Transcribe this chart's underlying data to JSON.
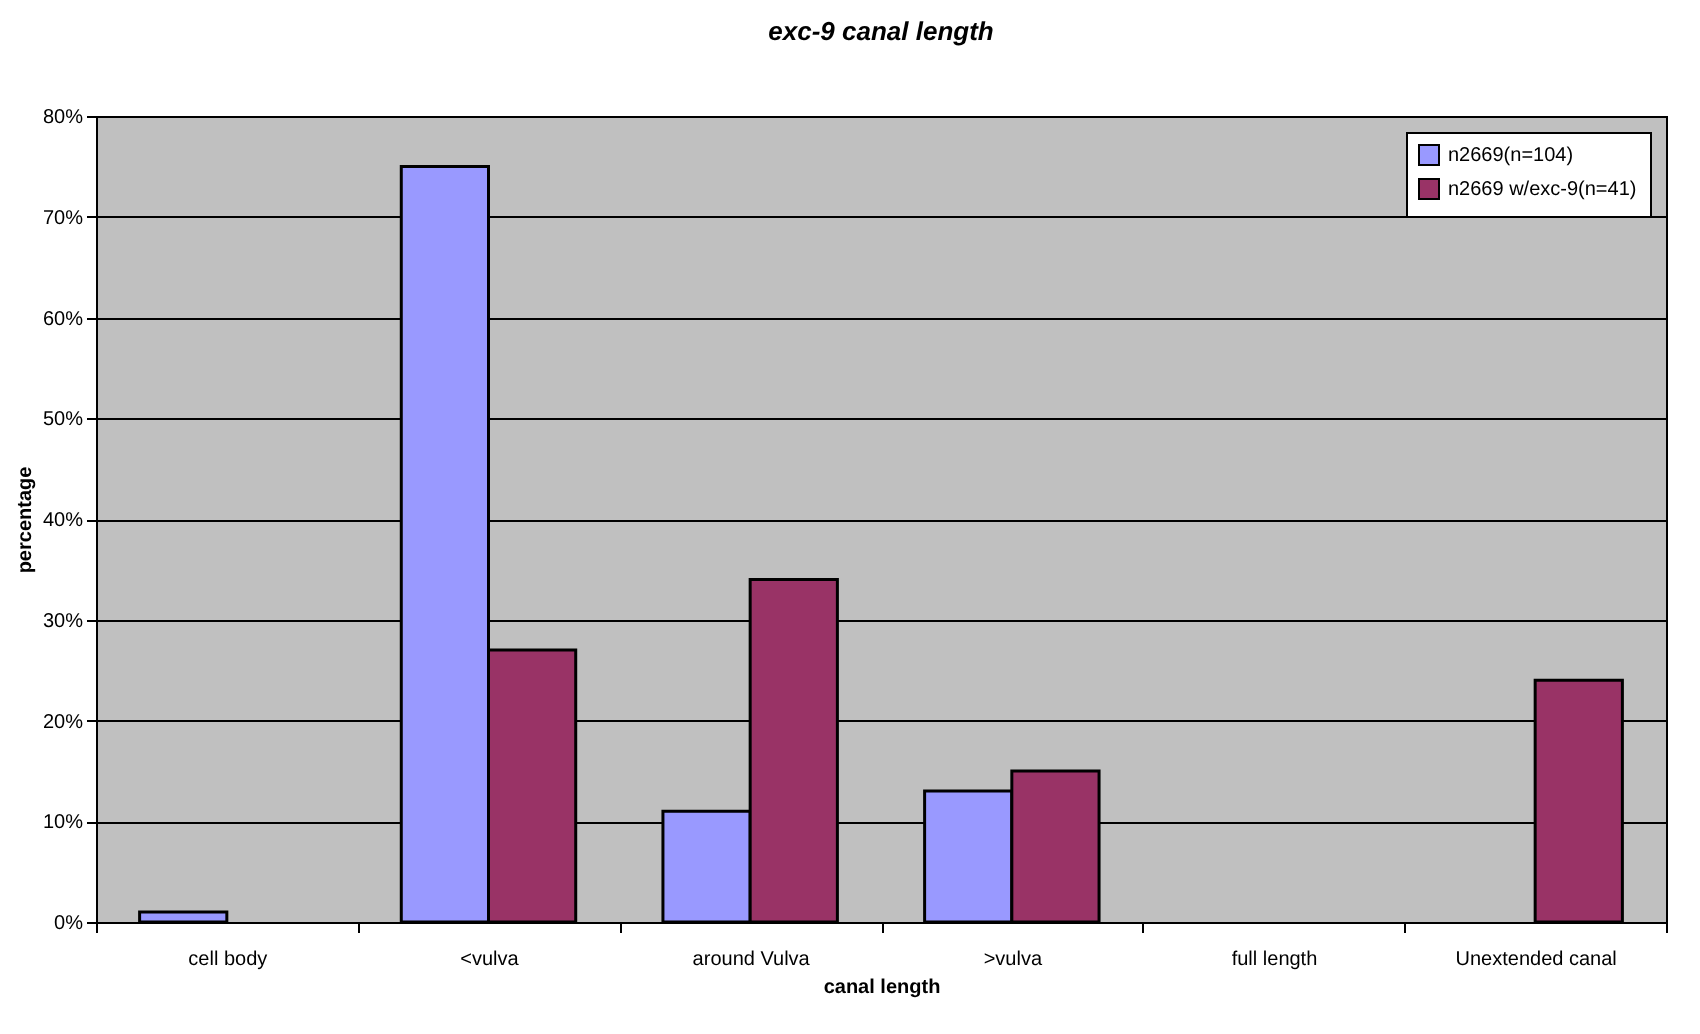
{
  "chart_data": {
    "type": "bar",
    "title": "exc-9 canal length",
    "xlabel": "canal length",
    "ylabel": "percentage",
    "categories": [
      "cell body",
      "<vulva",
      "around Vulva",
      ">vulva",
      "full length",
      "Unextended canal"
    ],
    "series": [
      {
        "name": "n2669(n=104)",
        "color": "#9999ff",
        "values": [
          1,
          75,
          11,
          13,
          null,
          null
        ]
      },
      {
        "name": "n2669 w/exc-9(n=41)",
        "color": "#993366",
        "values": [
          null,
          27,
          34,
          15,
          null,
          24
        ]
      }
    ],
    "ylim": [
      0,
      80
    ],
    "yticks": [
      {
        "value": 0,
        "label": "0%"
      },
      {
        "value": 10,
        "label": "10%"
      },
      {
        "value": 20,
        "label": "20%"
      },
      {
        "value": 30,
        "label": "30%"
      },
      {
        "value": 40,
        "label": "40%"
      },
      {
        "value": 50,
        "label": "50%"
      },
      {
        "value": 60,
        "label": "60%"
      },
      {
        "value": 70,
        "label": "70%"
      },
      {
        "value": 80,
        "label": "80%"
      }
    ],
    "grid": "y",
    "legend": "top right"
  }
}
